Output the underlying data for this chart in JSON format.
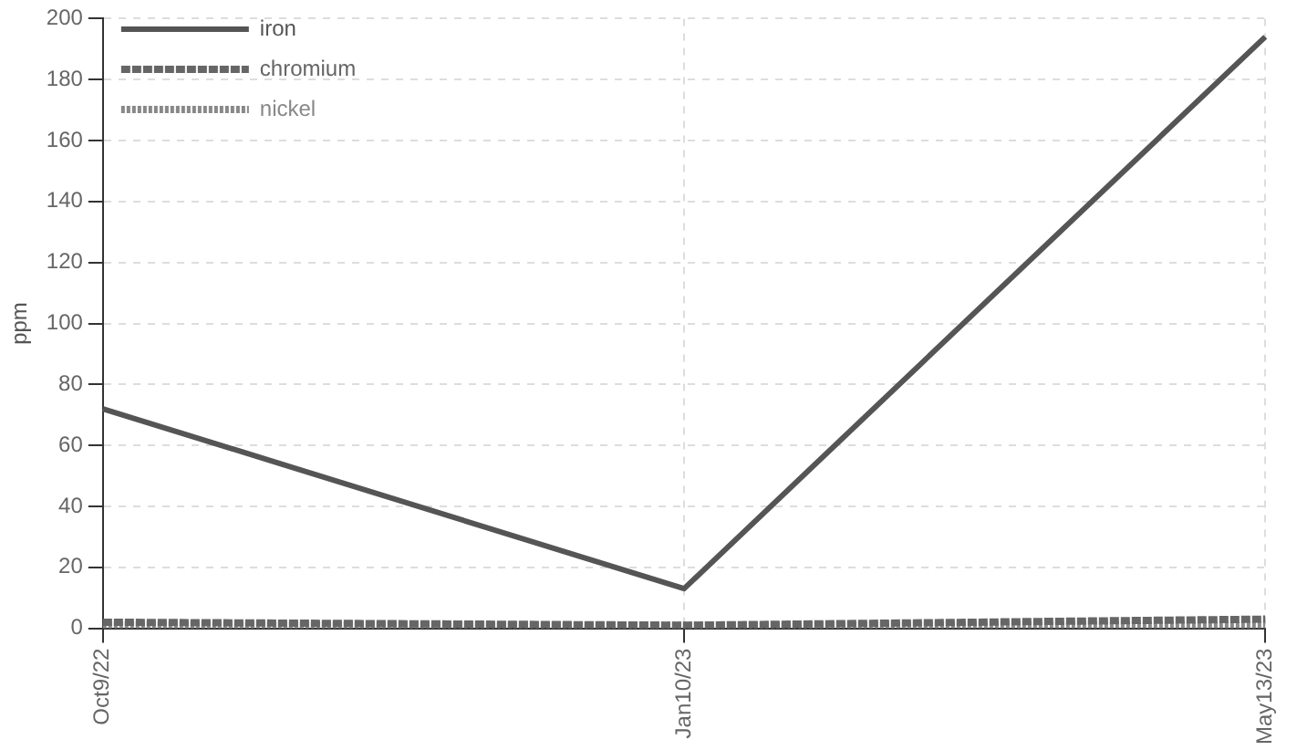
{
  "chart_data": {
    "type": "line",
    "ylabel": "ppm",
    "categories": [
      "Oct9/22",
      "Jan10/23",
      "May13/23"
    ],
    "series": [
      {
        "name": "iron",
        "color": "#555555",
        "values": [
          72,
          13,
          194
        ],
        "line_style": "solid"
      },
      {
        "name": "chromium",
        "color": "#666666",
        "values": [
          2,
          1,
          3
        ],
        "line_style": "dashed"
      },
      {
        "name": "nickel",
        "color": "#888888",
        "values": [
          1,
          1,
          1
        ],
        "line_style": "dotted"
      }
    ],
    "ylim": [
      0,
      200
    ],
    "yticks": [
      0,
      20,
      40,
      60,
      80,
      100,
      120,
      140,
      160,
      180,
      200
    ],
    "grid": true,
    "legend": "top left",
    "marker": "none"
  }
}
